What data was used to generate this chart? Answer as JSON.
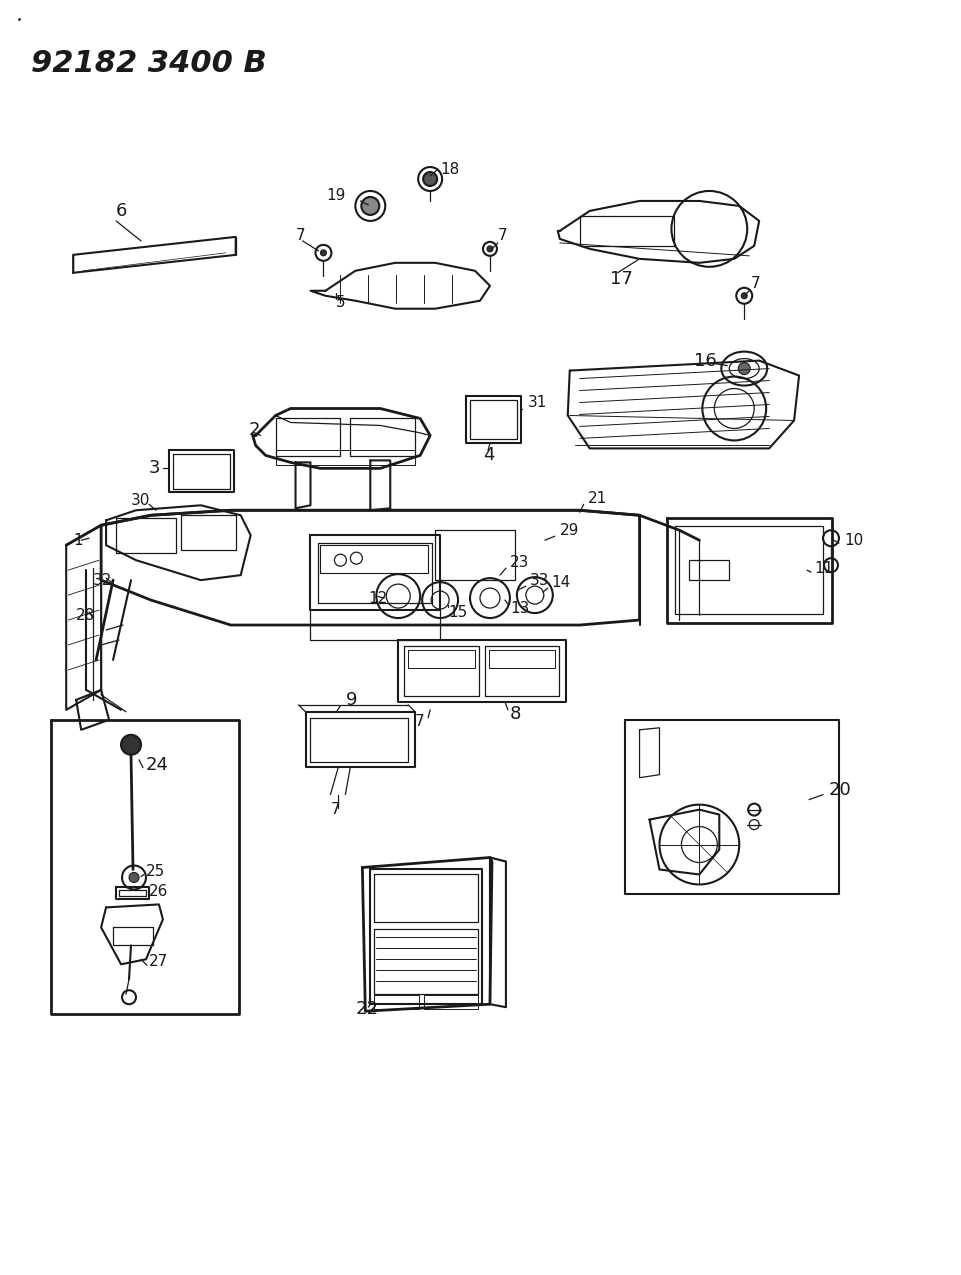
{
  "bg_color": "#ffffff",
  "line_color": "#1a1a1a",
  "fig_width": 9.62,
  "fig_height": 12.75,
  "dpi": 100,
  "header_text": "92182 3400 B",
  "header_fontsize": 22,
  "header_fontweight": "bold"
}
